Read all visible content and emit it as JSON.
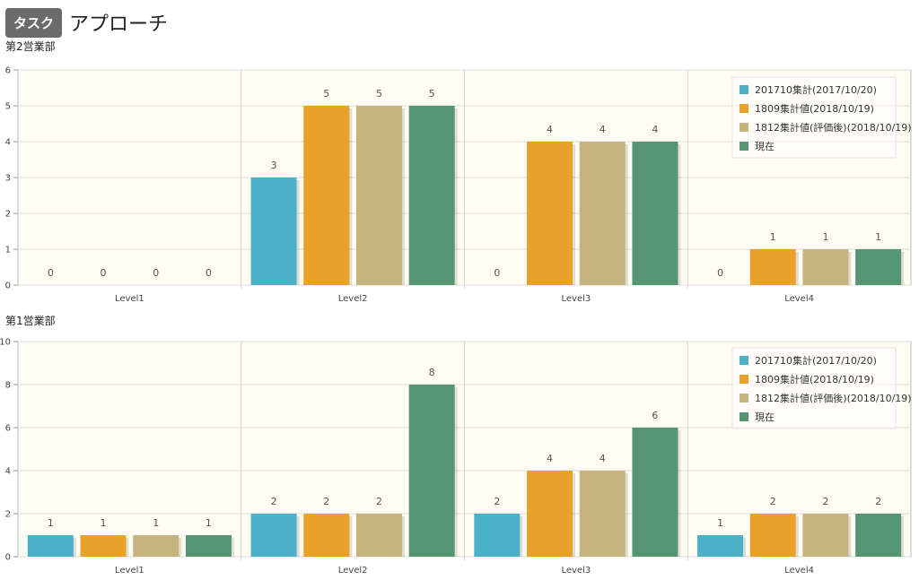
{
  "header": {
    "badge": "タスク",
    "title": "アプローチ"
  },
  "colors": {
    "s0": "#4bb0c8",
    "s1": "#e8a22a",
    "s2": "#c6b47e",
    "s3": "#559572",
    "plot_bg": "#fefcf3"
  },
  "chart_data": [
    {
      "type": "bar",
      "title": "第2営業部",
      "categories": [
        "Level1",
        "Level2",
        "Level3",
        "Level4"
      ],
      "series": [
        {
          "name": "201710集計(2017/10/20)",
          "values": [
            0,
            3,
            0,
            0
          ]
        },
        {
          "name": "1809集計値(2018/10/19)",
          "values": [
            0,
            5,
            4,
            1
          ]
        },
        {
          "name": "1812集計値(評価後)(2018/10/19)",
          "values": [
            0,
            5,
            4,
            1
          ]
        },
        {
          "name": "現在",
          "values": [
            0,
            5,
            4,
            1
          ]
        }
      ],
      "ylim": [
        0,
        6
      ],
      "yticks": [
        0,
        1,
        2,
        3,
        4,
        5,
        6
      ],
      "grid": true,
      "legend": "top-right"
    },
    {
      "type": "bar",
      "title": "第1営業部",
      "categories": [
        "Level1",
        "Level2",
        "Level3",
        "Level4"
      ],
      "series": [
        {
          "name": "201710集計(2017/10/20)",
          "values": [
            1,
            2,
            2,
            1
          ]
        },
        {
          "name": "1809集計値(2018/10/19)",
          "values": [
            1,
            2,
            4,
            2
          ]
        },
        {
          "name": "1812集計値(評価後)(2018/10/19)",
          "values": [
            1,
            2,
            4,
            2
          ]
        },
        {
          "name": "現在",
          "values": [
            1,
            8,
            6,
            2
          ]
        }
      ],
      "ylim": [
        0,
        10
      ],
      "yticks": [
        0,
        2,
        4,
        6,
        8,
        10
      ],
      "grid": true,
      "legend": "top-right"
    }
  ]
}
